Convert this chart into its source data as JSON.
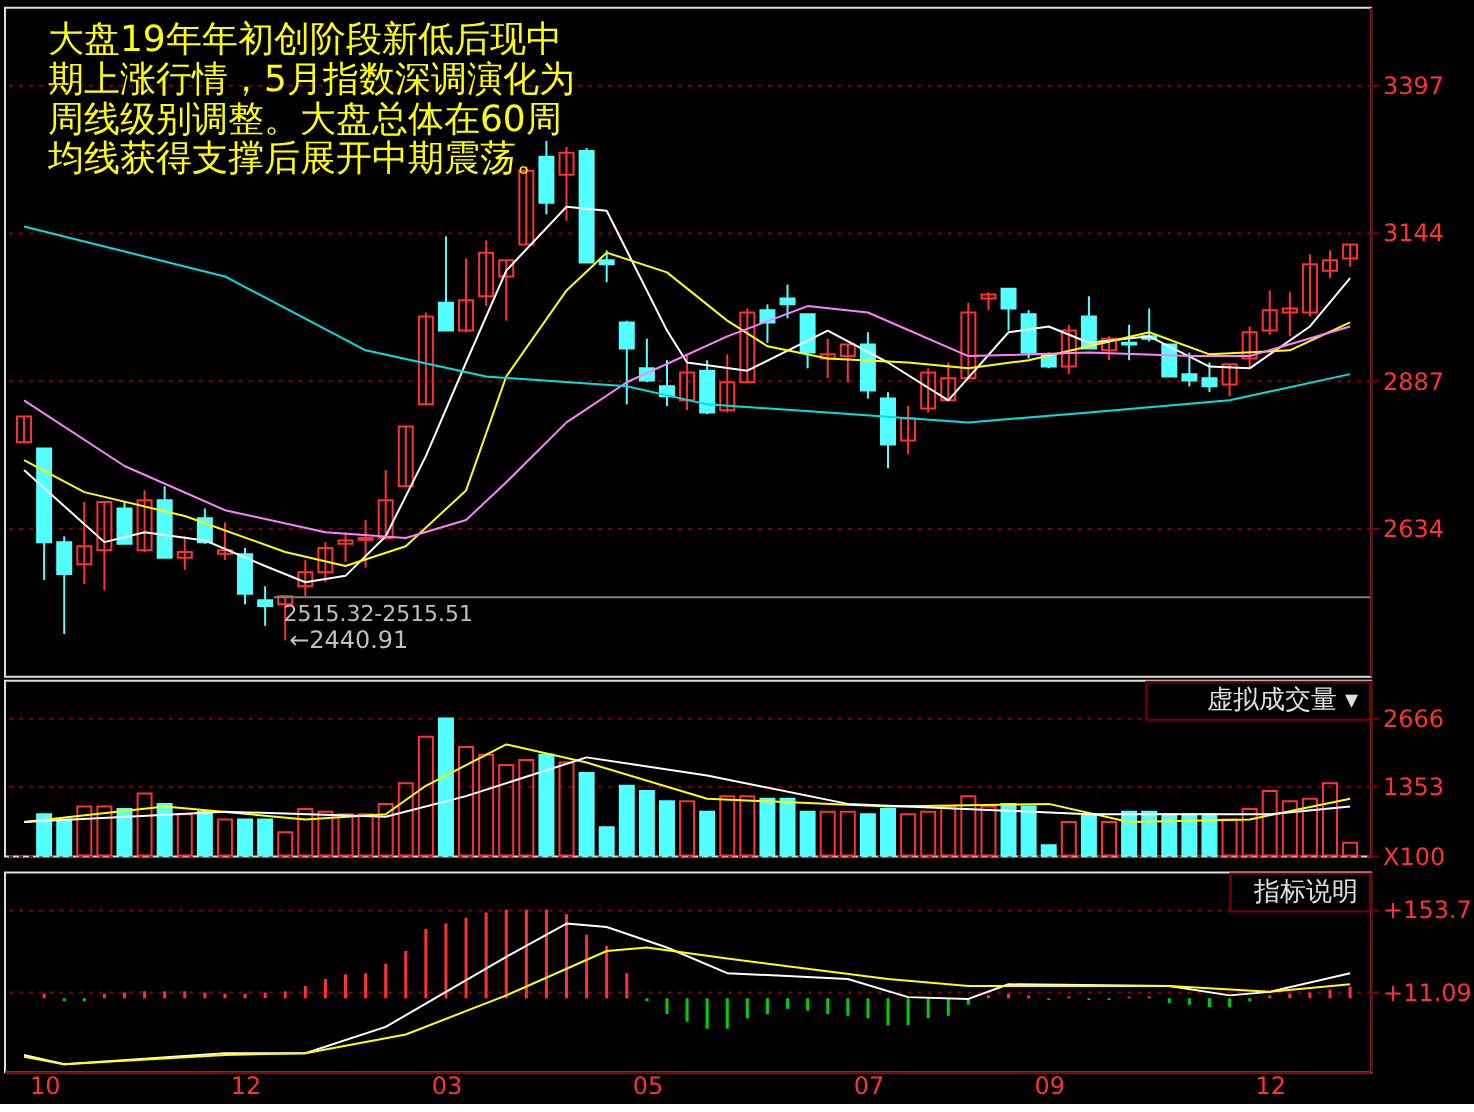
{
  "chart_data": [
    {
      "type": "candlestick",
      "title": "大盘19年年初创阶段新低后现中期上涨行情，5月指数深调演化为周线级别调整。大盘总体在60周均线获得支撑后展开中期震荡。",
      "categories": [
        null,
        "10",
        null,
        null,
        null,
        null,
        null,
        null,
        null,
        null,
        null,
        "12",
        null,
        null,
        null,
        null,
        null,
        null,
        null,
        null,
        null,
        "03",
        null,
        null,
        null,
        null,
        null,
        null,
        null,
        null,
        null,
        "05",
        null,
        null,
        null,
        null,
        null,
        null,
        null,
        null,
        null,
        null,
        "07",
        null,
        null,
        null,
        null,
        null,
        null,
        null,
        null,
        "09",
        null,
        null,
        null,
        null,
        null,
        null,
        null,
        null,
        null,
        null,
        "12",
        null,
        null,
        null,
        null
      ],
      "ohlc": [
        [
          2782,
          2826,
          2782,
          2826
        ],
        [
          2771,
          2771,
          2545,
          2610
        ],
        [
          2610,
          2620,
          2452,
          2555
        ],
        [
          2572,
          2679,
          2538,
          2603
        ],
        [
          2596,
          2679,
          2527,
          2679
        ],
        [
          2668,
          2679,
          2607,
          2607
        ],
        [
          2596,
          2699,
          2593,
          2682
        ],
        [
          2682,
          2706,
          2583,
          2583
        ],
        [
          2583,
          2620,
          2562,
          2593
        ],
        [
          2651,
          2668,
          2607,
          2610
        ],
        [
          2590,
          2644,
          2579,
          2596
        ],
        [
          2589,
          2600,
          2503,
          2521
        ],
        [
          2510,
          2534,
          2466,
          2500
        ],
        [
          2503,
          2517,
          2440.91,
          2517
        ],
        [
          2534,
          2579,
          2517,
          2558
        ],
        [
          2558,
          2610,
          2541,
          2600
        ],
        [
          2607,
          2627,
          2576,
          2613
        ],
        [
          2614,
          2648,
          2566,
          2617
        ],
        [
          2617,
          2734,
          2614,
          2682
        ],
        [
          2706,
          2809,
          2706,
          2809
        ],
        [
          2847,
          3005,
          2847,
          2998
        ],
        [
          3022,
          3136,
          2974,
          2974
        ],
        [
          2974,
          3098,
          2971,
          3026
        ],
        [
          3033,
          3129,
          3016,
          3108
        ],
        [
          3067,
          3095,
          2991,
          3095
        ],
        [
          3122,
          3256,
          3122,
          3249
        ],
        [
          3273,
          3300,
          3174,
          3194
        ],
        [
          3242,
          3290,
          3163,
          3280
        ],
        [
          3283,
          3288,
          3091,
          3091
        ],
        [
          3095,
          3112,
          3057,
          3088
        ],
        [
          2988,
          2991,
          2847,
          2943
        ],
        [
          2909,
          2960,
          2885,
          2888
        ],
        [
          2878,
          2923,
          2844,
          2861
        ],
        [
          2854,
          2933,
          2837,
          2902
        ],
        [
          2905,
          2923,
          2830,
          2833
        ],
        [
          2837,
          2933,
          2833,
          2885
        ],
        [
          2885,
          3012,
          2885,
          3005
        ],
        [
          3009,
          3019,
          2953,
          2988
        ],
        [
          3029,
          3053,
          2995,
          3019
        ],
        [
          3002,
          3002,
          2909,
          2936
        ],
        [
          2926,
          2960,
          2892,
          2933
        ],
        [
          2930,
          2950,
          2885,
          2950
        ],
        [
          2950,
          2971,
          2857,
          2871
        ],
        [
          2857,
          2868,
          2737,
          2778
        ],
        [
          2785,
          2844,
          2761,
          2823
        ],
        [
          2840,
          2909,
          2833,
          2902
        ],
        [
          2854,
          2919,
          2854,
          2892
        ],
        [
          2892,
          3022,
          2892,
          3005
        ],
        [
          3029,
          3040,
          3009,
          3036
        ],
        [
          3046,
          3046,
          2974,
          3012
        ],
        [
          3002,
          3009,
          2926,
          2936
        ],
        [
          2933,
          2936,
          2909,
          2912
        ],
        [
          2912,
          2984,
          2899,
          2974
        ],
        [
          2998,
          3033,
          2943,
          2943
        ],
        [
          2940,
          2964,
          2923,
          2960
        ],
        [
          2953,
          2984,
          2923,
          2950
        ],
        [
          2964,
          3012,
          2955,
          2960
        ],
        [
          2950,
          2950,
          2895,
          2895
        ],
        [
          2899,
          2936,
          2878,
          2888
        ],
        [
          2892,
          2919,
          2868,
          2878
        ],
        [
          2881,
          2916,
          2861,
          2916
        ],
        [
          2926,
          2981,
          2909,
          2971
        ],
        [
          2974,
          3043,
          2967,
          3009
        ],
        [
          3005,
          3040,
          2964,
          3012
        ],
        [
          3005,
          3105,
          2998,
          3088
        ],
        [
          3077,
          3112,
          3064,
          3095
        ],
        [
          3098,
          3122,
          3084,
          3122
        ]
      ],
      "colors": [
        "#ff3232",
        "#54ffff",
        "#54ffff",
        "#ff3232",
        "#ff3232",
        "#54ffff",
        "#ff3232",
        "#54ffff",
        "#ff3232",
        "#54ffff",
        "#ff3232",
        "#54ffff",
        "#54ffff",
        "#ff3232",
        "#ff3232",
        "#ff3232",
        "#ff3232",
        "#ff3232",
        "#ff3232",
        "#ff3232",
        "#ff3232",
        "#54ffff",
        "#ff3232",
        "#ff3232",
        "#ff3232",
        "#ff3232",
        "#54ffff",
        "#ff3232",
        "#54ffff",
        "#54ffff",
        "#54ffff",
        "#54ffff",
        "#54ffff",
        "#ff3232",
        "#54ffff",
        "#ff3232",
        "#ff3232",
        "#54ffff",
        "#54ffff",
        "#54ffff",
        "#ff3232",
        "#ff3232",
        "#54ffff",
        "#54ffff",
        "#ff3232",
        "#ff3232",
        "#ff3232",
        "#ff3232",
        "#ff3232",
        "#54ffff",
        "#54ffff",
        "#54ffff",
        "#ff3232",
        "#54ffff",
        "#ff3232",
        "#54ffff",
        "#54ffff",
        "#54ffff",
        "#54ffff",
        "#54ffff",
        "#ff3232",
        "#ff3232",
        "#ff3232",
        "#ff3232",
        "#ff3232",
        "#ff3232",
        "#ff3232"
      ],
      "series": [
        {
          "type": "line",
          "color": "#ffffff",
          "values": [
            2734,
            null,
            null,
            null,
            2610,
            null,
            2627,
            null,
            null,
            2613,
            null,
            null,
            2569,
            null,
            2541,
            null,
            2552,
            null,
            2620,
            null,
            2758,
            null,
            2919,
            null,
            3077,
            null,
            null,
            3187,
            null,
            3180,
            null,
            null,
            2974,
            2919,
            null,
            null,
            2905,
            null,
            null,
            null,
            2974,
            null,
            null,
            2919,
            null,
            null,
            2854,
            null,
            null,
            2971,
            null,
            2981,
            null,
            2953,
            null,
            null,
            2964,
            null,
            null,
            2912,
            null,
            2909,
            null,
            null,
            2981,
            null,
            3064
          ]
        },
        {
          "type": "line",
          "color": "#ffff00",
          "values": [
            2751,
            null,
            null,
            2696,
            null,
            null,
            null,
            null,
            2655,
            null,
            null,
            null,
            null,
            2593,
            null,
            null,
            2569,
            null,
            null,
            2603,
            null,
            null,
            2699,
            null,
            2895,
            null,
            null,
            3043,
            null,
            3108,
            null,
            null,
            3074,
            null,
            null,
            2991,
            null,
            2947,
            null,
            null,
            2926,
            null,
            null,
            null,
            2919,
            null,
            null,
            2909,
            null,
            null,
            2923,
            null,
            null,
            2947,
            null,
            null,
            2971,
            null,
            null,
            2933,
            null,
            null,
            null,
            2940,
            null,
            null,
            2988
          ]
        },
        {
          "type": "line",
          "color": "#ff80ff",
          "values": [
            2854,
            null,
            null,
            null,
            null,
            2741,
            null,
            null,
            null,
            null,
            2665,
            null,
            null,
            null,
            null,
            2627,
            null,
            null,
            null,
            2617,
            null,
            null,
            2648,
            null,
            2713,
            null,
            null,
            2816,
            null,
            null,
            2885,
            null,
            null,
            null,
            null,
            2964,
            null,
            null,
            null,
            3016,
            null,
            null,
            3005,
            null,
            null,
            null,
            null,
            2930,
            null,
            null,
            null,
            null,
            null,
            2936,
            null,
            null,
            null,
            null,
            2930,
            null,
            null,
            2930,
            null,
            null,
            null,
            null,
            2981
          ]
        },
        {
          "type": "line",
          "color": "#00e0e0",
          "values": [
            3153,
            null,
            null,
            null,
            null,
            null,
            null,
            null,
            null,
            null,
            3067,
            null,
            null,
            null,
            null,
            null,
            null,
            2940,
            null,
            null,
            null,
            null,
            null,
            2895,
            null,
            null,
            null,
            null,
            null,
            null,
            2878,
            null,
            null,
            null,
            2847,
            null,
            null,
            null,
            null,
            null,
            2833,
            null,
            null,
            null,
            null,
            null,
            null,
            2816,
            null,
            null,
            null,
            null,
            null,
            2833,
            null,
            null,
            null,
            null,
            null,
            null,
            2854,
            null,
            null,
            null,
            null,
            null,
            2899
          ]
        }
      ],
      "ylim": [
        2380,
        3531
      ],
      "yticks": [
        2634,
        2887,
        3144,
        3397
      ],
      "grid": "y",
      "tick_labels": "y",
      "ref_lines": [
        {
          "axis": "y",
          "value": 2515.32,
          "label": "2515.32-2515.51",
          "color": "#808080"
        }
      ],
      "annotations": [
        "←2440.91"
      ]
    },
    {
      "type": "bar",
      "categories": [
        null,
        "10",
        null,
        null,
        null,
        null,
        null,
        null,
        null,
        null,
        null,
        "12",
        null,
        null,
        null,
        null,
        null,
        null,
        null,
        null,
        null,
        "03",
        null,
        null,
        null,
        null,
        null,
        null,
        null,
        null,
        null,
        "05",
        null,
        null,
        null,
        null,
        null,
        null,
        null,
        null,
        null,
        null,
        "07",
        null,
        null,
        null,
        null,
        null,
        null,
        null,
        null,
        "09",
        null,
        null,
        null,
        null,
        null,
        null,
        null,
        null,
        null,
        null,
        "12",
        null,
        null,
        null,
        null
      ],
      "series": [
        {
          "type": "bar",
          "values": [
            null,
            800,
            700,
            950,
            950,
            900,
            1200,
            1000,
            800,
            850,
            700,
            700,
            700,
            450,
            900,
            850,
            800,
            800,
            1000,
            1400,
            2300,
            2650,
            2100,
            1950,
            1750,
            1850,
            1950,
            1800,
            1600,
            550,
            1350,
            1250,
            1050,
            1050,
            850,
            1150,
            1150,
            1100,
            1100,
            850,
            850,
            850,
            800,
            900,
            800,
            850,
            950,
            1150,
            950,
            1000,
            950,
            200,
            650,
            800,
            650,
            850,
            850,
            800,
            800,
            800,
            700,
            900,
            1250,
            1050,
            1100,
            1400,
            250
          ],
          "colors": [
            "#ff3232",
            "#54ffff",
            "#54ffff",
            "#ff3232",
            "#ff3232",
            "#54ffff",
            "#ff3232",
            "#54ffff",
            "#ff3232",
            "#54ffff",
            "#ff3232",
            "#54ffff",
            "#54ffff",
            "#ff3232",
            "#ff3232",
            "#ff3232",
            "#ff3232",
            "#ff3232",
            "#ff3232",
            "#ff3232",
            "#ff3232",
            "#54ffff",
            "#ff3232",
            "#ff3232",
            "#ff3232",
            "#ff3232",
            "#54ffff",
            "#ff3232",
            "#54ffff",
            "#54ffff",
            "#54ffff",
            "#54ffff",
            "#54ffff",
            "#ff3232",
            "#54ffff",
            "#ff3232",
            "#ff3232",
            "#54ffff",
            "#54ffff",
            "#54ffff",
            "#ff3232",
            "#ff3232",
            "#54ffff",
            "#54ffff",
            "#ff3232",
            "#ff3232",
            "#ff3232",
            "#ff3232",
            "#ff3232",
            "#54ffff",
            "#54ffff",
            "#54ffff",
            "#ff3232",
            "#54ffff",
            "#ff3232",
            "#54ffff",
            "#54ffff",
            "#54ffff",
            "#54ffff",
            "#54ffff",
            "#ff3232",
            "#ff3232",
            "#ff3232",
            "#ff3232",
            "#ff3232",
            "#ff3232",
            "#ff3232"
          ]
        },
        {
          "type": "line",
          "color": "#ffff00",
          "values": [
            650,
            null,
            null,
            null,
            null,
            null,
            null,
            950,
            null,
            null,
            null,
            null,
            null,
            null,
            700,
            null,
            null,
            null,
            800,
            null,
            1350,
            null,
            null,
            null,
            2150,
            null,
            null,
            null,
            1800,
            null,
            null,
            null,
            null,
            null,
            1100,
            null,
            null,
            null,
            null,
            null,
            null,
            null,
            null,
            950,
            null,
            null,
            null,
            null,
            null,
            null,
            null,
            1000,
            null,
            null,
            null,
            650,
            null,
            null,
            null,
            null,
            null,
            700,
            null,
            null,
            null,
            null,
            1100
          ]
        },
        {
          "type": "line",
          "color": "#ffffff",
          "values": [
            650,
            null,
            null,
            null,
            null,
            null,
            null,
            null,
            null,
            null,
            850,
            null,
            null,
            null,
            null,
            null,
            null,
            null,
            750,
            null,
            null,
            null,
            1150,
            null,
            null,
            null,
            null,
            null,
            1900,
            null,
            null,
            null,
            null,
            null,
            1550,
            null,
            null,
            null,
            null,
            null,
            null,
            1000,
            null,
            null,
            null,
            null,
            null,
            null,
            null,
            null,
            null,
            null,
            null,
            800,
            null,
            null,
            null,
            null,
            null,
            null,
            null,
            null,
            800,
            null,
            null,
            null,
            950
          ]
        }
      ],
      "ylim": [
        0,
        3400
      ],
      "yticks": [
        2666,
        1353,
        {
          "value": 0,
          "label": "X100"
        }
      ],
      "grid": "y",
      "tick_labels": "y",
      "annotations": [
        "虚拟成交量 ▾"
      ]
    },
    {
      "type": "bar",
      "categories": [
        null,
        "10",
        null,
        null,
        null,
        null,
        null,
        null,
        null,
        null,
        null,
        "12",
        null,
        null,
        null,
        null,
        null,
        null,
        null,
        null,
        null,
        "03",
        null,
        null,
        null,
        null,
        null,
        null,
        null,
        null,
        null,
        "05",
        null,
        null,
        null,
        null,
        null,
        null,
        null,
        null,
        null,
        null,
        "07",
        null,
        null,
        null,
        null,
        null,
        null,
        null,
        null,
        "09",
        null,
        null,
        null,
        null,
        null,
        null,
        null,
        null,
        null,
        null,
        "12",
        null,
        null,
        null,
        null
      ],
      "series": [
        {
          "type": "bar",
          "values": [
            null,
            8,
            -5,
            -5,
            8,
            10,
            12,
            12,
            12,
            10,
            8,
            8,
            10,
            12,
            21,
            33,
            41,
            43,
            59,
            81,
            119,
            128,
            138,
            147,
            152,
            152,
            152,
            144,
            109,
            90,
            43,
            -5,
            -27,
            -40,
            -52,
            -52,
            -34,
            -27,
            -18,
            -21,
            -27,
            -30,
            -34,
            -46,
            -46,
            -34,
            -30,
            -11,
            5,
            8,
            5,
            -3,
            3,
            -3,
            -3,
            3,
            3,
            -8,
            -11,
            -15,
            -15,
            -5,
            5,
            8,
            10,
            15,
            20
          ],
          "colors": [
            "#ff3232",
            "#ff3232",
            "#00d000",
            "#00d000",
            "#ff3232",
            "#ff3232",
            "#ff3232",
            "#ff3232",
            "#ff3232",
            "#ff3232",
            "#ff3232",
            "#ff3232",
            "#ff3232",
            "#ff3232",
            "#ff3232",
            "#ff3232",
            "#ff3232",
            "#ff3232",
            "#ff3232",
            "#ff3232",
            "#ff3232",
            "#ff3232",
            "#ff3232",
            "#ff3232",
            "#ff3232",
            "#ff3232",
            "#ff3232",
            "#ff3232",
            "#ff3232",
            "#ff3232",
            "#ff3232",
            "#00d000",
            "#00d000",
            "#00d000",
            "#00d000",
            "#00d000",
            "#00d000",
            "#00d000",
            "#00d000",
            "#00d000",
            "#00d000",
            "#00d000",
            "#00d000",
            "#00d000",
            "#00d000",
            "#00d000",
            "#00d000",
            "#00d000",
            "#ff3232",
            "#ff3232",
            "#ff3232",
            "#00d000",
            "#ff3232",
            "#00d000",
            "#00d000",
            "#ff3232",
            "#ff3232",
            "#00d000",
            "#00d000",
            "#00d000",
            "#00d000",
            "#00d000",
            "#ff3232",
            "#ff3232",
            "#ff3232",
            "#ff3232",
            "#ff3232"
          ]
        },
        {
          "type": "line",
          "color": "#ffffff",
          "values": [
            -97,
            null,
            -113,
            null,
            null,
            null,
            null,
            null,
            null,
            null,
            -94,
            null,
            null,
            null,
            -94,
            null,
            null,
            null,
            -49,
            null,
            null,
            11,
            null,
            null,
            71,
            null,
            null,
            128,
            null,
            122,
            null,
            null,
            87,
            null,
            null,
            43,
            null,
            null,
            null,
            null,
            null,
            33,
            null,
            null,
            2,
            null,
            null,
            -1,
            null,
            24,
            null,
            null,
            null,
            null,
            null,
            null,
            null,
            21,
            null,
            null,
            5,
            null,
            11,
            null,
            null,
            null,
            43
          ]
        },
        {
          "type": "line",
          "color": "#ffff00",
          "values": [
            -100,
            null,
            -113,
            null,
            null,
            null,
            null,
            null,
            null,
            null,
            -97,
            null,
            null,
            null,
            -94,
            null,
            null,
            null,
            null,
            -62,
            null,
            null,
            null,
            null,
            5,
            null,
            null,
            null,
            null,
            81,
            null,
            87,
            null,
            null,
            null,
            68,
            null,
            null,
            null,
            null,
            null,
            null,
            null,
            33,
            null,
            null,
            null,
            21,
            null,
            null,
            null,
            null,
            null,
            null,
            null,
            null,
            null,
            21,
            null,
            null,
            null,
            null,
            11,
            null,
            null,
            null,
            24
          ]
        }
      ],
      "ylim": [
        -125,
        217
      ],
      "yticks": [
        {
          "value": 153.7,
          "label": "+153.7"
        },
        {
          "value": 11.09,
          "label": "+11.09"
        }
      ],
      "grid": "y",
      "annotations": [
        "指标说明"
      ]
    }
  ]
}
